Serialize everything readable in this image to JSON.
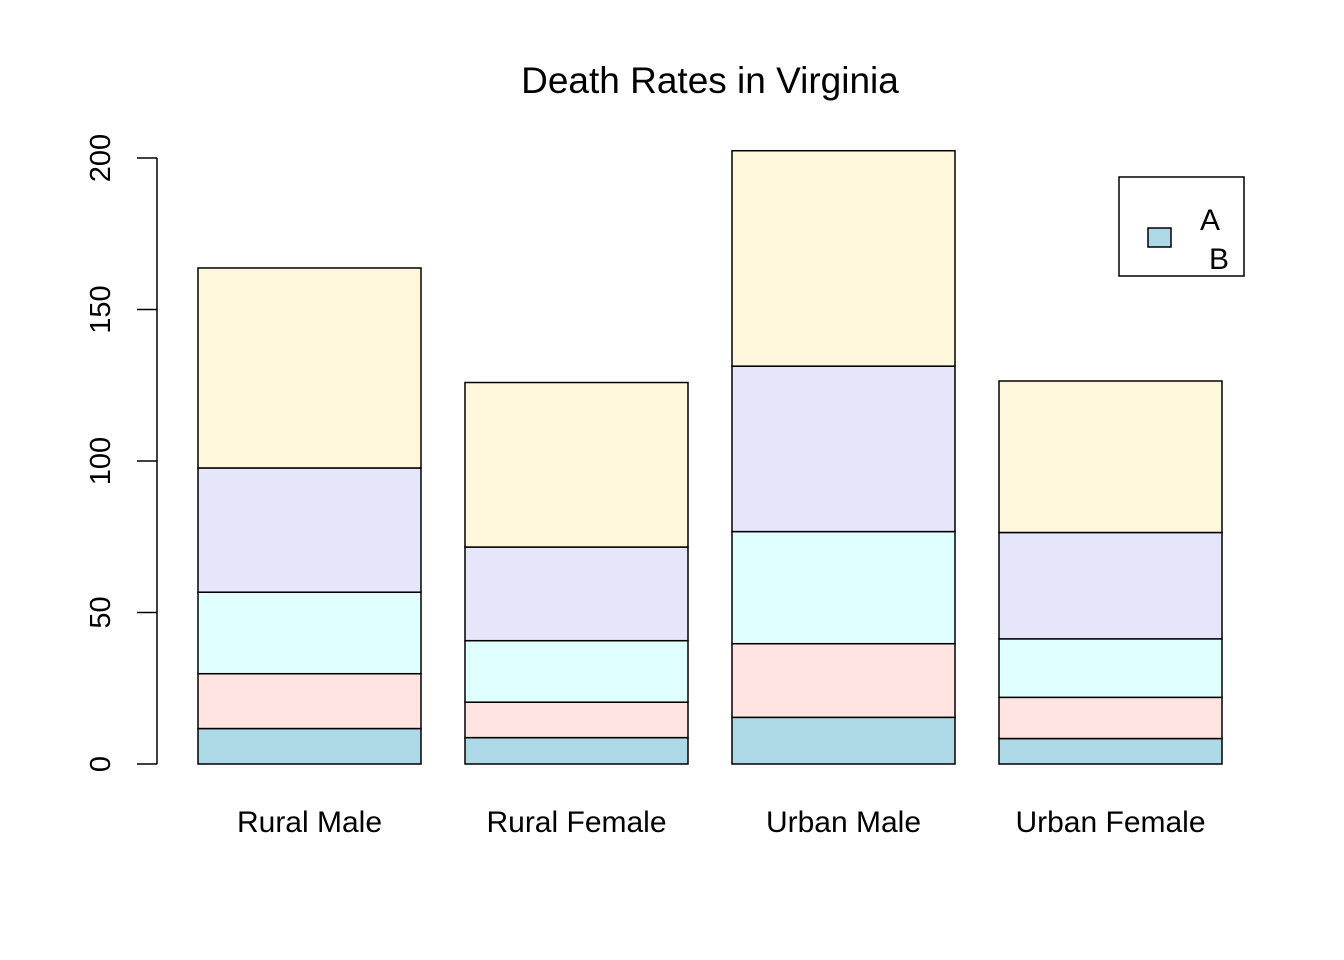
{
  "chart_data": {
    "type": "bar",
    "stacked": true,
    "title": "Death Rates in Virginia",
    "xlabel": "",
    "ylabel": "",
    "categories": [
      "Rural Male",
      "Rural Female",
      "Urban Male",
      "Urban Female"
    ],
    "series": [
      {
        "values": [
          11.7,
          8.7,
          15.4,
          8.4
        ],
        "color": "#ADD8E6"
      },
      {
        "values": [
          18.1,
          11.7,
          24.3,
          13.6
        ],
        "color": "#FFE4E1"
      },
      {
        "values": [
          26.9,
          20.3,
          37.0,
          19.3
        ],
        "color": "#E0FFFF"
      },
      {
        "values": [
          41.0,
          30.9,
          54.6,
          35.1
        ],
        "color": "#E6E6FA"
      },
      {
        "values": [
          66.0,
          54.3,
          71.1,
          50.0
        ],
        "color": "#FFF8DC"
      }
    ],
    "ylim": [
      0,
      200
    ],
    "yticks": [
      "0",
      "50",
      "100",
      "150",
      "200"
    ],
    "legend": {
      "entries": [
        "A",
        "B"
      ],
      "position": "top-right",
      "swatch_color": "#ADD8E6"
    },
    "grid": false
  }
}
